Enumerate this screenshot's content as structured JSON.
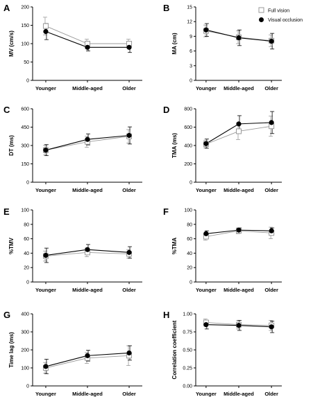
{
  "legend": [
    {
      "series": "Full vision",
      "marker": "open-square",
      "color": "#999999"
    },
    {
      "series": "Visual occlusion",
      "marker": "filled-circle",
      "color": "#000000"
    }
  ],
  "chart_data": [
    {
      "panel": "A",
      "type": "line",
      "ylabel": "MV (cm/s)",
      "categories": [
        "Younger",
        "Middle-aged",
        "Older"
      ],
      "ylim": [
        0,
        200
      ],
      "yticks": [
        0,
        50,
        100,
        150,
        200
      ],
      "series": [
        {
          "name": "Full vision",
          "values": [
            148,
            100,
            100
          ],
          "errors": [
            24,
            12,
            12
          ]
        },
        {
          "name": "Visual occlusion",
          "values": [
            133,
            90,
            90
          ],
          "errors": [
            22,
            10,
            14
          ]
        }
      ]
    },
    {
      "panel": "B",
      "type": "line",
      "ylabel": "MA (cm)",
      "categories": [
        "Younger",
        "Middle-aged",
        "Older"
      ],
      "ylim": [
        0,
        15
      ],
      "yticks": [
        0,
        3,
        6,
        9,
        12,
        15
      ],
      "series": [
        {
          "name": "Full vision",
          "values": [
            10.1,
            8.8,
            8.1
          ],
          "errors": [
            1.2,
            1.3,
            1.2
          ]
        },
        {
          "name": "Visual occlusion",
          "values": [
            10.3,
            8.7,
            8.0
          ],
          "errors": [
            1.3,
            1.6,
            1.6
          ]
        }
      ]
    },
    {
      "panel": "C",
      "type": "line",
      "ylabel": "DT (ms)",
      "categories": [
        "Younger",
        "Middle-aged",
        "Older"
      ],
      "ylim": [
        0,
        600
      ],
      "yticks": [
        0,
        150,
        300,
        450,
        600
      ],
      "series": [
        {
          "name": "Full vision",
          "values": [
            262,
            330,
            375
          ],
          "errors": [
            40,
            45,
            55
          ]
        },
        {
          "name": "Visual occlusion",
          "values": [
            262,
            350,
            382
          ],
          "errors": [
            45,
            45,
            70
          ]
        }
      ]
    },
    {
      "panel": "D",
      "type": "line",
      "ylabel": "TMA (ms)",
      "categories": [
        "Younger",
        "Middle-aged",
        "Older"
      ],
      "ylim": [
        0,
        800
      ],
      "yticks": [
        0,
        200,
        400,
        600,
        800
      ],
      "series": [
        {
          "name": "Full vision",
          "values": [
            415,
            555,
            610
          ],
          "errors": [
            40,
            90,
            110
          ]
        },
        {
          "name": "Visual occlusion",
          "values": [
            420,
            635,
            650
          ],
          "errors": [
            50,
            90,
            120
          ]
        }
      ]
    },
    {
      "panel": "E",
      "type": "line",
      "ylabel": "%TMV",
      "categories": [
        "Younger",
        "Middle-aged",
        "Older"
      ],
      "ylim": [
        0,
        100
      ],
      "yticks": [
        0,
        20,
        40,
        60,
        80,
        100
      ],
      "series": [
        {
          "name": "Full vision",
          "values": [
            36,
            41,
            39
          ],
          "errors": [
            7,
            6,
            6
          ]
        },
        {
          "name": "Visual occlusion",
          "values": [
            37,
            45,
            41
          ],
          "errors": [
            10,
            7,
            8
          ]
        }
      ]
    },
    {
      "panel": "F",
      "type": "line",
      "ylabel": "%TMA",
      "categories": [
        "Younger",
        "Middle-aged",
        "Older"
      ],
      "ylim": [
        0,
        100
      ],
      "yticks": [
        0,
        20,
        40,
        60,
        80,
        100
      ],
      "series": [
        {
          "name": "Full vision",
          "values": [
            63,
            71,
            68
          ],
          "errors": [
            5,
            4,
            8
          ]
        },
        {
          "name": "Visual occlusion",
          "values": [
            67,
            72,
            71
          ],
          "errors": [
            4,
            3,
            4
          ]
        }
      ]
    },
    {
      "panel": "G",
      "type": "line",
      "ylabel": "Time lag (ms)",
      "categories": [
        "Younger",
        "Middle-aged",
        "Older"
      ],
      "ylim": [
        0,
        400
      ],
      "yticks": [
        0,
        100,
        200,
        300,
        400
      ],
      "series": [
        {
          "name": "Full vision",
          "values": [
            100,
            155,
            168
          ],
          "errors": [
            30,
            30,
            55
          ]
        },
        {
          "name": "Visual occlusion",
          "values": [
            108,
            168,
            183
          ],
          "errors": [
            40,
            30,
            40
          ]
        }
      ]
    },
    {
      "panel": "H",
      "type": "line",
      "ylabel": "Correlation coefficient",
      "categories": [
        "Younger",
        "Middle-aged",
        "Older"
      ],
      "ylim": [
        0,
        1.0
      ],
      "yticks": [
        "0.00",
        "0.25",
        "0.50",
        "0.75",
        "1.00"
      ],
      "series": [
        {
          "name": "Full vision",
          "values": [
            0.88,
            0.85,
            0.84
          ],
          "errors": [
            0.05,
            0.06,
            0.07
          ]
        },
        {
          "name": "Visual occlusion",
          "values": [
            0.85,
            0.84,
            0.82
          ],
          "errors": [
            0.06,
            0.07,
            0.08
          ]
        }
      ]
    }
  ]
}
